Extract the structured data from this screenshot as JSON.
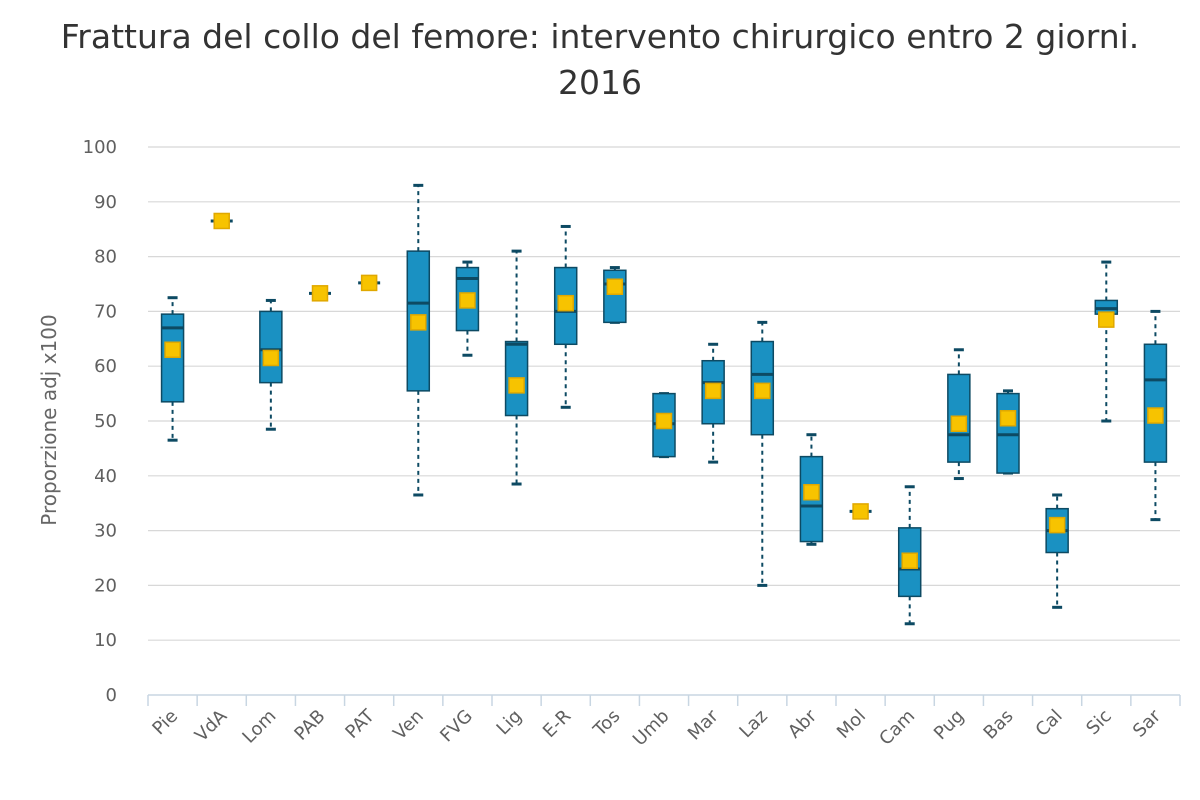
{
  "chart_data": {
    "type": "boxplot",
    "title": "Frattura del collo del femore: intervento chirurgico entro 2 giorni. 2016",
    "xlabel": "",
    "ylabel": "Proporzione adj x100",
    "ylim": [
      0,
      100
    ],
    "yticks": [
      0,
      10,
      20,
      30,
      40,
      50,
      60,
      70,
      80,
      90,
      100
    ],
    "grid": true,
    "colors": {
      "box": "#1a91c2",
      "box_stroke": "#0d4a63",
      "mean_marker": "#f7c300",
      "mean_stroke": "#e0a800",
      "grid": "#d8d8d8",
      "axis": "#c8d6e2"
    },
    "categories": [
      "Pie",
      "VdA",
      "Lom",
      "PAB",
      "PAT",
      "Ven",
      "FVG",
      "Lig",
      "E-R",
      "Tos",
      "Umb",
      "Mar",
      "Laz",
      "Abr",
      "Mol",
      "Cam",
      "Pug",
      "Bas",
      "Cal",
      "Sic",
      "Sar"
    ],
    "boxes": [
      {
        "min": 46.5,
        "q1": 53.5,
        "median": 67.0,
        "q3": 69.5,
        "max": 72.5,
        "mean": 63.0
      },
      {
        "min": 86.5,
        "q1": 86.5,
        "median": 86.5,
        "q3": 86.5,
        "max": 86.5,
        "mean": 86.5
      },
      {
        "min": 48.5,
        "q1": 57.0,
        "median": 63.0,
        "q3": 70.0,
        "max": 72.0,
        "mean": 61.5
      },
      {
        "min": 73.3,
        "q1": 73.3,
        "median": 73.3,
        "q3": 73.3,
        "max": 73.3,
        "mean": 73.3
      },
      {
        "min": 75.2,
        "q1": 75.2,
        "median": 75.2,
        "q3": 75.2,
        "max": 75.2,
        "mean": 75.2
      },
      {
        "min": 36.5,
        "q1": 55.5,
        "median": 71.5,
        "q3": 81.0,
        "max": 93.0,
        "mean": 68.0
      },
      {
        "min": 62.0,
        "q1": 66.5,
        "median": 76.0,
        "q3": 78.0,
        "max": 79.0,
        "mean": 72.0
      },
      {
        "min": 38.5,
        "q1": 51.0,
        "median": 64.0,
        "q3": 64.5,
        "max": 81.0,
        "mean": 56.5
      },
      {
        "min": 52.5,
        "q1": 64.0,
        "median": 70.0,
        "q3": 78.0,
        "max": 85.5,
        "mean": 71.5
      },
      {
        "min": 68.0,
        "q1": 68.0,
        "median": 75.0,
        "q3": 77.5,
        "max": 78.0,
        "mean": 74.5
      },
      {
        "min": 43.5,
        "q1": 43.5,
        "median": 49.5,
        "q3": 55.0,
        "max": 55.0,
        "mean": 50.0
      },
      {
        "min": 42.5,
        "q1": 49.5,
        "median": 57.0,
        "q3": 61.0,
        "max": 64.0,
        "mean": 55.5
      },
      {
        "min": 20.0,
        "q1": 47.5,
        "median": 58.5,
        "q3": 64.5,
        "max": 68.0,
        "mean": 55.5
      },
      {
        "min": 27.5,
        "q1": 28.0,
        "median": 34.5,
        "q3": 43.5,
        "max": 47.5,
        "mean": 37.0
      },
      {
        "min": 33.5,
        "q1": 33.5,
        "median": 33.5,
        "q3": 33.5,
        "max": 33.5,
        "mean": 33.5
      },
      {
        "min": 13.0,
        "q1": 18.0,
        "median": 23.0,
        "q3": 30.5,
        "max": 38.0,
        "mean": 24.5
      },
      {
        "min": 39.5,
        "q1": 42.5,
        "median": 47.5,
        "q3": 58.5,
        "max": 63.0,
        "mean": 49.5
      },
      {
        "min": 40.5,
        "q1": 40.5,
        "median": 47.5,
        "q3": 55.0,
        "max": 55.5,
        "mean": 50.5
      },
      {
        "min": 16.0,
        "q1": 26.0,
        "median": 30.0,
        "q3": 34.0,
        "max": 36.5,
        "mean": 31.0
      },
      {
        "min": 50.0,
        "q1": 69.5,
        "median": 70.5,
        "q3": 72.0,
        "max": 79.0,
        "mean": 68.5
      },
      {
        "min": 32.0,
        "q1": 42.5,
        "median": 57.5,
        "q3": 64.0,
        "max": 70.0,
        "mean": 51.0
      }
    ]
  }
}
